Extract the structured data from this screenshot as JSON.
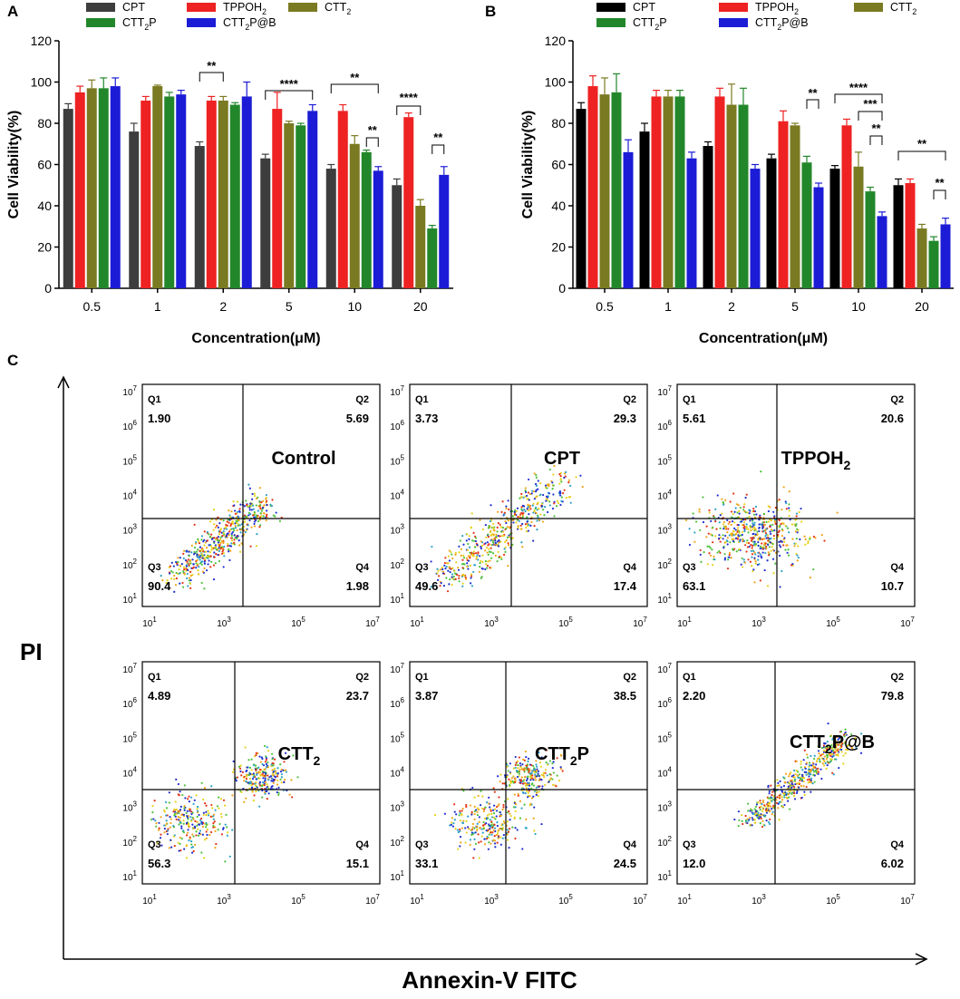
{
  "colors": {
    "CPT_A": "#3d3d3d",
    "CPT_B": "#000000",
    "TPPOH2": "#ee2222",
    "CTT2": "#7a7a22",
    "CTT2P": "#22872a",
    "CTT2P@B": "#1c1cd6",
    "quadrant_line": "#000000"
  },
  "chart_data": [
    {
      "panel": "A",
      "type": "bar",
      "ylabel": "Cell Viability (%)",
      "xlabel": "Concentration (μM)",
      "ylim": [
        0,
        120
      ],
      "yticks": [
        "0",
        "20",
        "40",
        "60",
        "80",
        "100",
        "120"
      ],
      "categories": [
        "0.5",
        "1",
        "2",
        "5",
        "10",
        "20"
      ],
      "legend": [
        "CPT",
        "CTT2P",
        "TPPOH2",
        "CTT2P@B",
        "CTT2"
      ],
      "series": [
        {
          "name": "CPT",
          "values": [
            87,
            76,
            69,
            63,
            58,
            50
          ],
          "errors": [
            2.5,
            4,
            2,
            2,
            2,
            3
          ]
        },
        {
          "name": "TPPOH2",
          "values": [
            95,
            91,
            91,
            87,
            86,
            83
          ],
          "errors": [
            3,
            2,
            2,
            8,
            3,
            2
          ]
        },
        {
          "name": "CTT2",
          "values": [
            97,
            98,
            91,
            80,
            70,
            40
          ],
          "errors": [
            4,
            0.5,
            2,
            1,
            4,
            3
          ]
        },
        {
          "name": "CTT2P",
          "values": [
            97,
            93,
            89,
            79,
            66,
            29
          ],
          "errors": [
            5,
            2,
            1,
            1,
            1,
            1.5
          ]
        },
        {
          "name": "CTT2P@B",
          "values": [
            98,
            94,
            93,
            86,
            57,
            55
          ],
          "errors": [
            4,
            2,
            7,
            3,
            2,
            4
          ]
        }
      ],
      "annotations": [
        "**",
        "****",
        "**",
        "**",
        "****",
        "**"
      ]
    },
    {
      "panel": "B",
      "type": "bar",
      "ylabel": "Cell Viability (%)",
      "xlabel": "Concentration (μM)",
      "ylim": [
        0,
        120
      ],
      "yticks": [
        "0",
        "20",
        "40",
        "60",
        "80",
        "100",
        "120"
      ],
      "categories": [
        "0.5",
        "1",
        "2",
        "5",
        "10",
        "20"
      ],
      "legend": [
        "CPT",
        "CTT2P",
        "TPPOH2",
        "CTT2P@B",
        "CTT2"
      ],
      "series": [
        {
          "name": "CPT",
          "values": [
            87,
            76,
            69,
            63,
            58,
            50
          ],
          "errors": [
            3,
            4,
            2,
            2,
            1.5,
            3
          ]
        },
        {
          "name": "TPPOH2",
          "values": [
            98,
            93,
            93,
            81,
            79,
            51
          ],
          "errors": [
            5,
            3,
            4,
            5,
            3,
            2
          ]
        },
        {
          "name": "CTT2",
          "values": [
            94,
            93,
            89,
            79,
            59,
            29
          ],
          "errors": [
            8,
            3,
            10,
            1,
            7,
            2
          ]
        },
        {
          "name": "CTT2P",
          "values": [
            95,
            93,
            89,
            61,
            47,
            23
          ],
          "errors": [
            9,
            3,
            8,
            3,
            2,
            2
          ]
        },
        {
          "name": "CTT2P@B",
          "values": [
            66,
            63,
            58,
            49,
            35,
            31
          ],
          "errors": [
            6,
            3,
            2,
            2,
            2,
            3
          ]
        }
      ],
      "annotations": [
        "**",
        "****",
        "***",
        "**",
        "**",
        "**"
      ]
    }
  ],
  "panels": {
    "A": "A",
    "B": "B",
    "C": "C"
  },
  "labels": {
    "CPT": "CPT",
    "TPPOH": "TPPOH",
    "CTT": "CTT",
    "sub2": "2",
    "P": "P",
    "P_at_B": "P@B",
    "ylabel_main": "Cell Viability",
    "ylabel_unit": "(%)",
    "xlabel_main": "Concentration",
    "xlabel_unit": "(μM)"
  },
  "flow": {
    "y_axis_label": "PI",
    "x_axis_label": "Annexin-V FITC",
    "tick_base": "10",
    "tick_exps": [
      "1",
      "2",
      "3",
      "4",
      "5",
      "6",
      "7"
    ],
    "x_tick_exps": [
      "1",
      "3",
      "5",
      "7"
    ],
    "quadrant_labels": [
      "Q1",
      "Q2",
      "Q3",
      "Q4"
    ],
    "plots": [
      {
        "name": "Control",
        "name_sub": "",
        "name_suffix": "",
        "q1": "1.90",
        "q2": "5.69",
        "q3": "90.4",
        "q4": "1.98"
      },
      {
        "name": "CPT",
        "name_sub": "",
        "name_suffix": "",
        "q1": "3.73",
        "q2": "29.3",
        "q3": "49.6",
        "q4": "17.4"
      },
      {
        "name": "TPPOH",
        "name_sub": "2",
        "name_suffix": "",
        "q1": "5.61",
        "q2": "20.6",
        "q3": "63.1",
        "q4": "10.7"
      },
      {
        "name": "CTT",
        "name_sub": "2",
        "name_suffix": "",
        "q1": "4.89",
        "q2": "23.7",
        "q3": "56.3",
        "q4": "15.1"
      },
      {
        "name": "CTT",
        "name_sub": "2",
        "name_suffix": "P",
        "q1": "3.87",
        "q2": "38.5",
        "q3": "33.1",
        "q4": "24.5"
      },
      {
        "name": "CTT",
        "name_sub": "2",
        "name_suffix": "P@B",
        "q1": "2.20",
        "q2": "79.8",
        "q3": "12.0",
        "q4": "6.02"
      }
    ]
  }
}
